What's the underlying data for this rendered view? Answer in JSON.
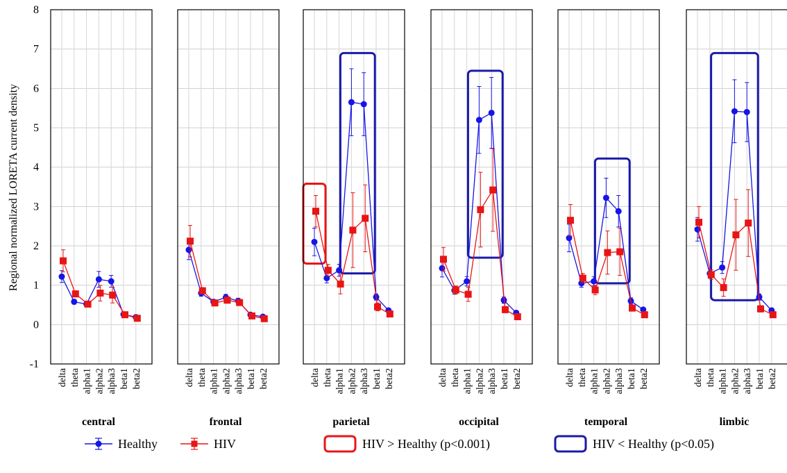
{
  "chart_data": {
    "type": "line",
    "ylabel": "Regional normalized LORETA current density",
    "ylim": [
      -1,
      8
    ],
    "yticks": [
      -1,
      0,
      1,
      2,
      3,
      4,
      5,
      6,
      7,
      8
    ],
    "grid": true,
    "categories": [
      "delta",
      "theta",
      "alpha1",
      "alpha2",
      "alpha3",
      "beta1",
      "beta2"
    ],
    "series_styles": [
      {
        "name": "Healthy",
        "color": "#1515e6",
        "marker": "circle"
      },
      {
        "name": "HIV",
        "color": "#e81515",
        "marker": "square"
      }
    ],
    "panels": [
      {
        "region": "central",
        "healthy": [
          1.22,
          0.58,
          0.52,
          1.15,
          1.1,
          0.26,
          0.19
        ],
        "healthy_err": [
          0.15,
          0.06,
          0.06,
          0.2,
          0.15,
          0.05,
          0.04
        ],
        "hiv": [
          1.62,
          0.78,
          0.52,
          0.8,
          0.75,
          0.25,
          0.16
        ],
        "hiv_err": [
          0.28,
          0.08,
          0.06,
          0.2,
          0.2,
          0.05,
          0.04
        ],
        "boxes": []
      },
      {
        "region": "frontal",
        "healthy": [
          1.9,
          0.8,
          0.58,
          0.69,
          0.6,
          0.25,
          0.2
        ],
        "healthy_err": [
          0.25,
          0.08,
          0.06,
          0.08,
          0.07,
          0.04,
          0.03
        ],
        "hiv": [
          2.12,
          0.86,
          0.55,
          0.62,
          0.56,
          0.22,
          0.15
        ],
        "hiv_err": [
          0.4,
          0.08,
          0.07,
          0.07,
          0.06,
          0.04,
          0.03
        ],
        "boxes": []
      },
      {
        "region": "parietal",
        "healthy": [
          2.1,
          1.18,
          1.38,
          5.65,
          5.6,
          0.7,
          0.36
        ],
        "healthy_err": [
          0.35,
          0.12,
          0.15,
          0.85,
          0.8,
          0.08,
          0.05
        ],
        "hiv": [
          2.88,
          1.38,
          1.03,
          2.4,
          2.7,
          0.45,
          0.27
        ],
        "hiv_err": [
          0.4,
          0.15,
          0.25,
          0.95,
          0.85,
          0.1,
          0.05
        ],
        "boxes": [
          {
            "kind": "hiv_gt",
            "from": "delta",
            "to": "delta",
            "y0": 1.55,
            "y1": 3.58
          },
          {
            "kind": "hiv_lt",
            "from": "alpha2",
            "to": "alpha3",
            "y0": 1.3,
            "y1": 6.9
          }
        ]
      },
      {
        "region": "occipital",
        "healthy": [
          1.43,
          0.87,
          1.1,
          5.2,
          5.38,
          0.62,
          0.3
        ],
        "healthy_err": [
          0.22,
          0.1,
          0.12,
          0.85,
          0.9,
          0.08,
          0.05
        ],
        "hiv": [
          1.66,
          0.88,
          0.77,
          2.92,
          3.42,
          0.38,
          0.2
        ],
        "hiv_err": [
          0.3,
          0.1,
          0.18,
          0.95,
          1.05,
          0.08,
          0.04
        ],
        "boxes": [
          {
            "kind": "hiv_lt",
            "from": "alpha2",
            "to": "alpha3",
            "y0": 1.7,
            "y1": 6.45
          }
        ]
      },
      {
        "region": "temporal",
        "healthy": [
          2.2,
          1.05,
          1.1,
          3.22,
          2.88,
          0.6,
          0.38
        ],
        "healthy_err": [
          0.35,
          0.1,
          0.12,
          0.5,
          0.4,
          0.08,
          0.05
        ],
        "hiv": [
          2.65,
          1.18,
          0.88,
          1.83,
          1.85,
          0.42,
          0.25
        ],
        "hiv_err": [
          0.4,
          0.12,
          0.12,
          0.55,
          0.6,
          0.08,
          0.04
        ],
        "boxes": [
          {
            "kind": "hiv_lt",
            "from": "alpha2",
            "to": "alpha3",
            "y0": 1.05,
            "y1": 4.22
          }
        ]
      },
      {
        "region": "limbic",
        "healthy": [
          2.42,
          1.3,
          1.45,
          5.42,
          5.4,
          0.7,
          0.36
        ],
        "healthy_err": [
          0.3,
          0.12,
          0.15,
          0.8,
          0.75,
          0.08,
          0.05
        ],
        "hiv": [
          2.6,
          1.27,
          0.94,
          2.28,
          2.58,
          0.4,
          0.25
        ],
        "hiv_err": [
          0.4,
          0.12,
          0.22,
          0.9,
          0.85,
          0.08,
          0.04
        ],
        "boxes": [
          {
            "kind": "hiv_lt",
            "from": "alpha1",
            "to": "alpha3",
            "y0": 0.62,
            "y1": 6.9
          }
        ]
      }
    ]
  },
  "legend": {
    "healthy_label": "Healthy",
    "hiv_label": "HIV",
    "hiv_gt_label": "HIV > Healthy (p<0.001)",
    "hiv_lt_label": "HIV < Healthy (p<0.05)",
    "hiv_gt_color": "#e81515",
    "hiv_lt_color": "#1a1aa8"
  }
}
